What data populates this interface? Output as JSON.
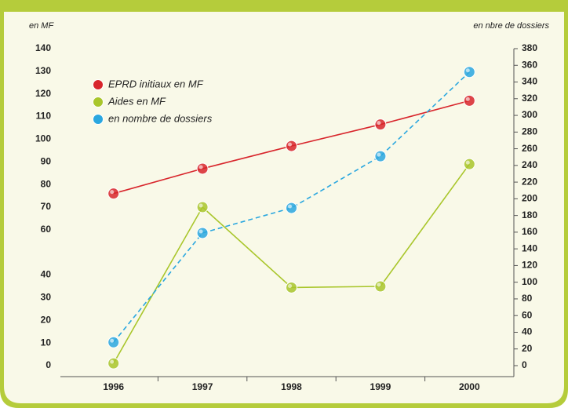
{
  "chart_data": {
    "type": "line",
    "y_label": "en MF",
    "y2_label": "en nbre de dossiers",
    "categories": [
      "1996",
      "1997",
      "1998",
      "1999",
      "2000"
    ],
    "series": [
      {
        "name": "EPRD initiaux en MF",
        "color": "#d8262c",
        "values": [
          76,
          87,
          97,
          106.5,
          117
        ]
      },
      {
        "name": "Aides en MF",
        "color": "#a9c62b",
        "values": [
          1,
          70,
          34.5,
          35,
          89
        ]
      },
      {
        "name": "en nombre de dossiers",
        "color": "#2aa7df",
        "dashed": true,
        "axis": "y2",
        "values": [
          28,
          159,
          189,
          251,
          352
        ]
      }
    ],
    "ylim": [
      0,
      140
    ],
    "yticks": [
      0,
      10,
      20,
      30,
      40,
      60,
      70,
      80,
      90,
      100,
      110,
      120,
      130,
      140
    ],
    "y2lim": [
      0,
      380
    ],
    "y2ticks": [
      0,
      20,
      40,
      60,
      80,
      100,
      120,
      140,
      160,
      180,
      200,
      220,
      240,
      260,
      280,
      300,
      320,
      340,
      360,
      380
    ],
    "legend": "top-left"
  }
}
